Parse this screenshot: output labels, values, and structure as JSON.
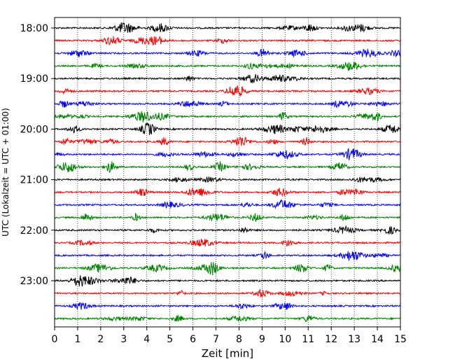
{
  "chart_data": {
    "type": "line",
    "title": "",
    "xlabel": "Zeit  [min]",
    "ylabel": "UTC (Lokalzeit = UTC + 01:00)",
    "xlim": [
      0,
      15
    ],
    "x_ticks": [
      0,
      1,
      2,
      3,
      4,
      5,
      6,
      7,
      8,
      9,
      10,
      11,
      12,
      13,
      14,
      15
    ],
    "y_tick_labels": [
      "18:00",
      "19:00",
      "20:00",
      "21:00",
      "22:00",
      "23:00"
    ],
    "grid": "vertical dotted lines at each minute",
    "trace_colors": [
      "#000000",
      "#ff0000",
      "#0000ff",
      "#008000"
    ],
    "series": [
      {
        "start": "18:00",
        "color": "black"
      },
      {
        "start": "18:15",
        "color": "red"
      },
      {
        "start": "18:30",
        "color": "blue"
      },
      {
        "start": "18:45",
        "color": "green"
      },
      {
        "start": "19:00",
        "color": "black"
      },
      {
        "start": "19:15",
        "color": "red"
      },
      {
        "start": "19:30",
        "color": "blue"
      },
      {
        "start": "19:45",
        "color": "green"
      },
      {
        "start": "20:00",
        "color": "black"
      },
      {
        "start": "20:15",
        "color": "red"
      },
      {
        "start": "20:30",
        "color": "blue"
      },
      {
        "start": "20:45",
        "color": "green"
      },
      {
        "start": "21:00",
        "color": "black"
      },
      {
        "start": "21:15",
        "color": "red"
      },
      {
        "start": "21:30",
        "color": "blue"
      },
      {
        "start": "21:45",
        "color": "green"
      },
      {
        "start": "22:00",
        "color": "black"
      },
      {
        "start": "22:15",
        "color": "red"
      },
      {
        "start": "22:30",
        "color": "blue"
      },
      {
        "start": "22:45",
        "color": "green"
      },
      {
        "start": "23:00",
        "color": "black"
      },
      {
        "start": "23:15",
        "color": "red"
      },
      {
        "start": "23:30",
        "color": "blue"
      },
      {
        "start": "23:45",
        "color": "green"
      }
    ]
  }
}
